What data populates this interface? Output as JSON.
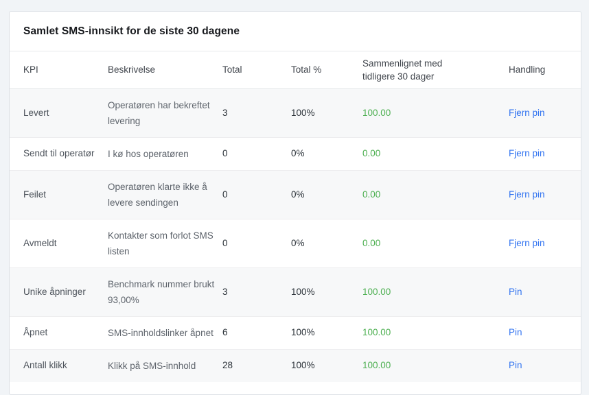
{
  "colors": {
    "positive": "#4caf50",
    "link": "#2e71f0",
    "page-bg": "#f1f4f7"
  },
  "card": {
    "title": "Samlet SMS-innsikt for de siste 30 dagene"
  },
  "table": {
    "headers": {
      "kpi": "KPI",
      "description": "Beskrivelse",
      "total": "Total",
      "total_pct": "Total %",
      "compared": "Sammenlignet med tidligere 30 dager",
      "action": "Handling"
    },
    "rows": [
      {
        "kpi": "Levert",
        "description": "Operatøren har bekreftet\nlevering",
        "total": "3",
        "total_pct": "100%",
        "compared": "100.00",
        "action": "Fjern pin"
      },
      {
        "kpi": "Sendt til operatør",
        "description": "I kø hos operatøren",
        "total": "0",
        "total_pct": "0%",
        "compared": "0.00",
        "action": "Fjern pin"
      },
      {
        "kpi": "Feilet",
        "description": "Operatøren klarte ikke å\nlevere sendingen",
        "total": "0",
        "total_pct": "0%",
        "compared": "0.00",
        "action": "Fjern pin"
      },
      {
        "kpi": "Avmeldt",
        "description": "Kontakter som forlot SMS\nlisten",
        "total": "0",
        "total_pct": "0%",
        "compared": "0.00",
        "action": "Fjern pin"
      },
      {
        "kpi": "Unike åpninger",
        "description": "Benchmark nummer brukt\n93,00%",
        "total": "3",
        "total_pct": "100%",
        "compared": "100.00",
        "action": "Pin"
      },
      {
        "kpi": "Åpnet",
        "description": "SMS-innholdslinker åpnet",
        "total": "6",
        "total_pct": "100%",
        "compared": "100.00",
        "action": "Pin"
      },
      {
        "kpi": "Antall klikk",
        "description": "Klikk på SMS-innhold",
        "total": "28",
        "total_pct": "100%",
        "compared": "100.00",
        "action": "Pin"
      }
    ]
  }
}
